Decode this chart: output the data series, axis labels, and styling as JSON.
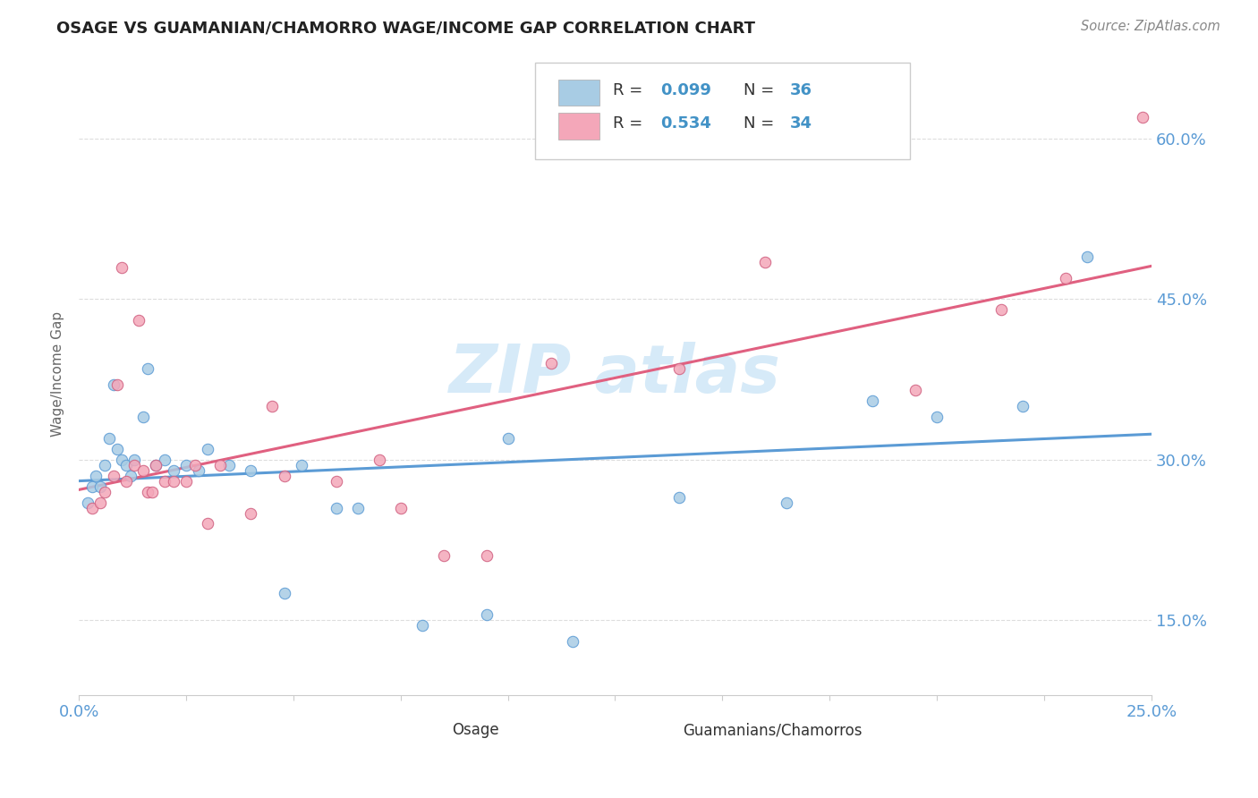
{
  "title": "OSAGE VS GUAMANIAN/CHAMORRO WAGE/INCOME GAP CORRELATION CHART",
  "source": "Source: ZipAtlas.com",
  "ylabel": "Wage/Income Gap",
  "xlim": [
    0.0,
    0.25
  ],
  "ylim": [
    0.08,
    0.68
  ],
  "xticks": [
    0.0,
    0.025,
    0.05,
    0.075,
    0.1,
    0.125,
    0.15,
    0.175,
    0.2,
    0.225,
    0.25
  ],
  "ytick_values": [
    0.15,
    0.3,
    0.45,
    0.6
  ],
  "ytick_labels": [
    "15.0%",
    "30.0%",
    "45.0%",
    "60.0%"
  ],
  "blue_color": "#a8cce4",
  "pink_color": "#f4a7b9",
  "blue_line_color": "#5b9bd5",
  "pink_line_color": "#e06080",
  "watermark_color": "#d6eaf8",
  "background_color": "#ffffff",
  "grid_color": "#dddddd",
  "title_color": "#222222",
  "source_color": "#888888",
  "axis_label_color": "#5b9bd5",
  "ylabel_color": "#666666",
  "blue_x": [
    0.002,
    0.003,
    0.004,
    0.005,
    0.006,
    0.007,
    0.008,
    0.009,
    0.01,
    0.011,
    0.012,
    0.013,
    0.015,
    0.016,
    0.018,
    0.02,
    0.022,
    0.025,
    0.028,
    0.03,
    0.035,
    0.04,
    0.048,
    0.052,
    0.06,
    0.065,
    0.08,
    0.095,
    0.1,
    0.115,
    0.14,
    0.165,
    0.185,
    0.2,
    0.22,
    0.235
  ],
  "blue_y": [
    0.26,
    0.275,
    0.285,
    0.275,
    0.295,
    0.32,
    0.37,
    0.31,
    0.3,
    0.295,
    0.285,
    0.3,
    0.34,
    0.385,
    0.295,
    0.3,
    0.29,
    0.295,
    0.29,
    0.31,
    0.295,
    0.29,
    0.175,
    0.295,
    0.255,
    0.255,
    0.145,
    0.155,
    0.32,
    0.13,
    0.265,
    0.26,
    0.355,
    0.34,
    0.35,
    0.49
  ],
  "pink_x": [
    0.003,
    0.005,
    0.006,
    0.008,
    0.009,
    0.01,
    0.011,
    0.013,
    0.014,
    0.015,
    0.016,
    0.017,
    0.018,
    0.02,
    0.022,
    0.025,
    0.027,
    0.03,
    0.033,
    0.04,
    0.045,
    0.048,
    0.06,
    0.07,
    0.075,
    0.085,
    0.095,
    0.11,
    0.14,
    0.16,
    0.195,
    0.215,
    0.23,
    0.248
  ],
  "pink_y": [
    0.255,
    0.26,
    0.27,
    0.285,
    0.37,
    0.48,
    0.28,
    0.295,
    0.43,
    0.29,
    0.27,
    0.27,
    0.295,
    0.28,
    0.28,
    0.28,
    0.295,
    0.24,
    0.295,
    0.25,
    0.35,
    0.285,
    0.28,
    0.3,
    0.255,
    0.21,
    0.21,
    0.39,
    0.385,
    0.485,
    0.365,
    0.44,
    0.47,
    0.62
  ]
}
